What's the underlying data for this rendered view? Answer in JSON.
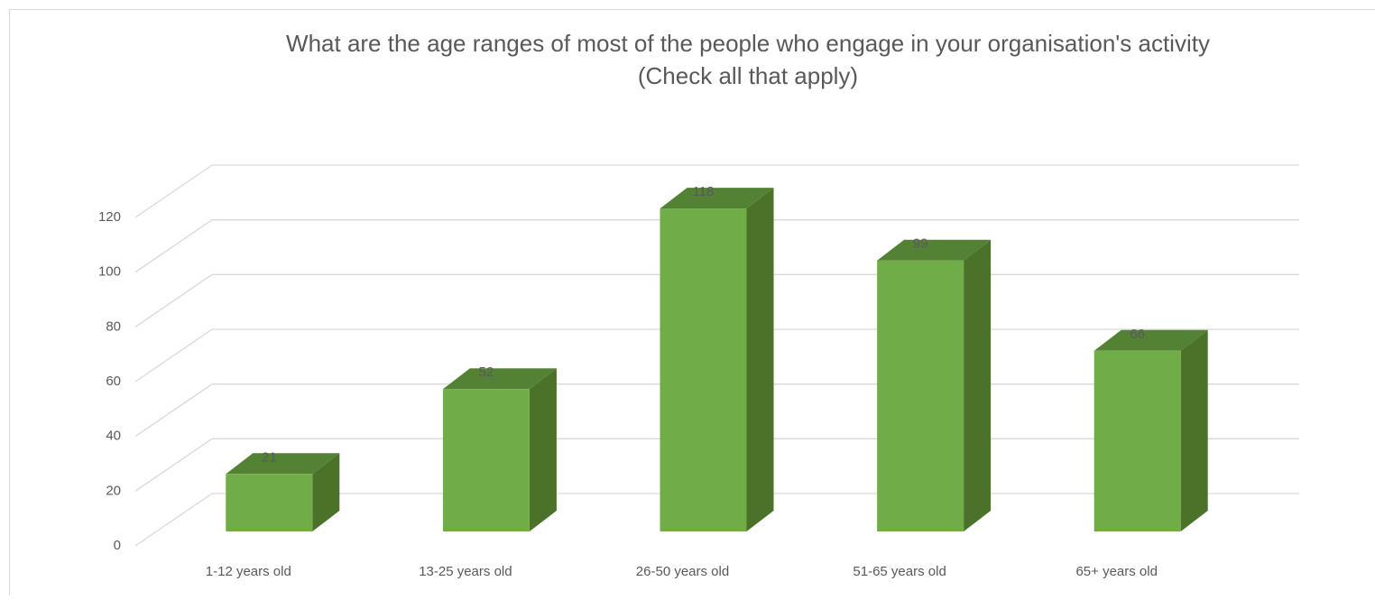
{
  "chart_data": {
    "type": "bar3d",
    "title": [
      "What are the age ranges of most of the people who engage in your organisation's activity",
      "(Check all that apply)"
    ],
    "categories": [
      "1-12 years old",
      "13-25 years old",
      "26-50 years old",
      "51-65 years old",
      "65+ years old"
    ],
    "values": [
      21,
      52,
      118,
      99,
      66
    ],
    "color": "#70ad47",
    "ylim": [
      0,
      120
    ],
    "yticks": [
      0,
      20,
      40,
      60,
      80,
      100,
      120
    ],
    "grid": true
  }
}
